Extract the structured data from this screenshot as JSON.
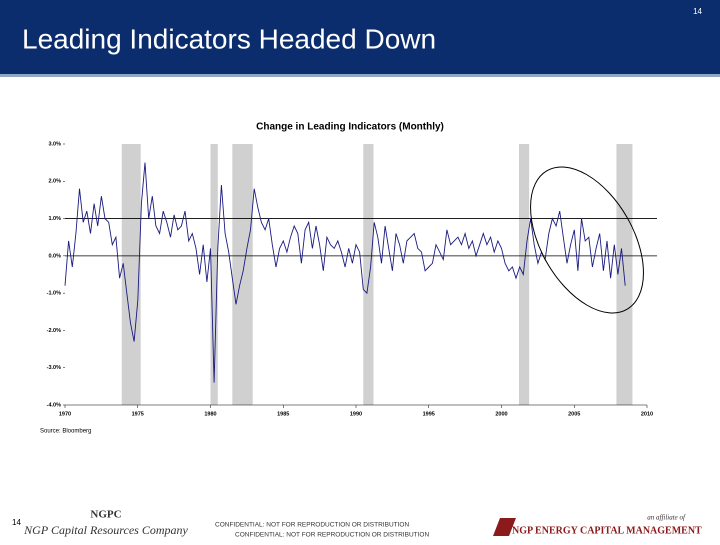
{
  "header": {
    "title": "Leading Indicators Headed Down",
    "page_number": "14"
  },
  "chart_data": {
    "type": "line",
    "title": "Change in Leading Indicators (Monthly)",
    "source": "Source: Bloomberg",
    "color": "#1a1a80",
    "x": [
      1970,
      1970.25,
      1970.5,
      1970.75,
      1971,
      1971.25,
      1971.5,
      1971.75,
      1972,
      1972.25,
      1972.5,
      1972.75,
      1973,
      1973.25,
      1973.5,
      1973.75,
      1974,
      1974.25,
      1974.5,
      1974.75,
      1975,
      1975.25,
      1975.5,
      1975.75,
      1976,
      1976.25,
      1976.5,
      1976.75,
      1977,
      1977.25,
      1977.5,
      1977.75,
      1978,
      1978.25,
      1978.5,
      1978.75,
      1979,
      1979.25,
      1979.5,
      1979.75,
      1980,
      1980.25,
      1980.5,
      1980.75,
      1981,
      1981.25,
      1981.5,
      1981.75,
      1982,
      1982.25,
      1982.5,
      1982.75,
      1983,
      1983.25,
      1983.5,
      1983.75,
      1984,
      1984.25,
      1984.5,
      1984.75,
      1985,
      1985.25,
      1985.5,
      1985.75,
      1986,
      1986.25,
      1986.5,
      1986.75,
      1987,
      1987.25,
      1987.5,
      1987.75,
      1988,
      1988.25,
      1988.5,
      1988.75,
      1989,
      1989.25,
      1989.5,
      1989.75,
      1990,
      1990.25,
      1990.5,
      1990.75,
      1991,
      1991.25,
      1991.5,
      1991.75,
      1992,
      1992.25,
      1992.5,
      1992.75,
      1993,
      1993.25,
      1993.5,
      1993.75,
      1994,
      1994.25,
      1994.5,
      1994.75,
      1995,
      1995.25,
      1995.5,
      1995.75,
      1996,
      1996.25,
      1996.5,
      1996.75,
      1997,
      1997.25,
      1997.5,
      1997.75,
      1998,
      1998.25,
      1998.5,
      1998.75,
      1999,
      1999.25,
      1999.5,
      1999.75,
      2000,
      2000.25,
      2000.5,
      2000.75,
      2001,
      2001.25,
      2001.5,
      2001.75,
      2002,
      2002.25,
      2002.5,
      2002.75,
      2003,
      2003.25,
      2003.5,
      2003.75,
      2004,
      2004.25,
      2004.5,
      2004.75,
      2005,
      2005.25,
      2005.5,
      2005.75,
      2006,
      2006.25,
      2006.5,
      2006.75,
      2007,
      2007.25,
      2007.5,
      2007.75,
      2008,
      2008.25,
      2008.5
    ],
    "values": [
      -0.8,
      0.4,
      -0.3,
      0.6,
      1.8,
      0.9,
      1.2,
      0.6,
      1.4,
      0.8,
      1.6,
      1.0,
      0.9,
      0.3,
      0.5,
      -0.6,
      -0.2,
      -1.0,
      -1.8,
      -2.3,
      -1.2,
      1.4,
      2.5,
      1.0,
      1.6,
      0.8,
      0.6,
      1.2,
      0.9,
      0.5,
      1.1,
      0.7,
      0.8,
      1.2,
      0.4,
      0.6,
      0.2,
      -0.5,
      0.3,
      -0.7,
      0.2,
      -3.4,
      0.2,
      1.9,
      0.6,
      0.1,
      -0.6,
      -1.3,
      -0.8,
      -0.4,
      0.2,
      0.7,
      1.8,
      1.3,
      0.9,
      0.7,
      1.0,
      0.3,
      -0.3,
      0.2,
      0.4,
      0.1,
      0.5,
      0.8,
      0.6,
      -0.2,
      0.7,
      0.9,
      0.2,
      0.8,
      0.3,
      -0.4,
      0.5,
      0.3,
      0.2,
      0.4,
      0.1,
      -0.3,
      0.2,
      -0.2,
      0.3,
      0.1,
      -0.9,
      -1.0,
      -0.3,
      0.9,
      0.5,
      -0.2,
      0.8,
      0.2,
      -0.4,
      0.6,
      0.3,
      -0.2,
      0.4,
      0.5,
      0.6,
      0.2,
      0.1,
      -0.4,
      -0.3,
      -0.2,
      0.3,
      0.1,
      -0.1,
      0.7,
      0.3,
      0.4,
      0.5,
      0.3,
      0.6,
      0.2,
      0.4,
      0.0,
      0.3,
      0.6,
      0.3,
      0.5,
      0.1,
      0.4,
      0.2,
      -0.2,
      -0.4,
      -0.3,
      -0.6,
      -0.3,
      -0.5,
      0.4,
      1.0,
      0.3,
      -0.2,
      0.1,
      -0.1,
      0.6,
      1.0,
      0.8,
      1.2,
      0.5,
      -0.2,
      0.3,
      0.7,
      -0.4,
      1.0,
      0.4,
      0.5,
      -0.3,
      0.2,
      0.6,
      -0.4,
      0.4,
      -0.6,
      0.3,
      -0.5,
      0.2,
      -0.8
    ],
    "recessions": [
      [
        1973.9,
        1975.2
      ],
      [
        1980.0,
        1980.5
      ],
      [
        1981.5,
        1982.9
      ],
      [
        1990.5,
        1991.2
      ],
      [
        2001.2,
        2001.9
      ],
      [
        2007.9,
        2009.0
      ]
    ],
    "reference_lines": [
      1,
      0
    ],
    "xlim": [
      1970,
      2010
    ],
    "xticks": [
      1970,
      1975,
      1980,
      1985,
      1990,
      1995,
      2000,
      2005,
      2010
    ],
    "ylim": [
      -4,
      3
    ],
    "yticks": [
      {
        "value": 3,
        "label": "3.0%"
      },
      {
        "value": 2,
        "label": "2.0%"
      },
      {
        "value": 1,
        "label": "1.0%"
      },
      {
        "value": 0,
        "label": "0.0%"
      },
      {
        "value": -1,
        "label": "-1.0%"
      },
      {
        "value": -2,
        "label": "-2.0%"
      },
      {
        "value": -3,
        "label": "-3.0%"
      },
      {
        "value": -4,
        "label": "-4.0%"
      }
    ]
  },
  "footer": {
    "page_number": "14",
    "brand": "NGPC",
    "company": "NGP Capital Resources Company",
    "confidential": [
      "CONFIDENTIAL: NOT FOR REPRODUCTION OR DISTRIBUTION",
      "CONFIDENTIAL: NOT FOR REPRODUCTION OR DISTRIBUTION"
    ],
    "affiliate": "an affiliate of",
    "affiliate_name": "NGP ENERGY CAPITAL MANAGEMENT"
  }
}
